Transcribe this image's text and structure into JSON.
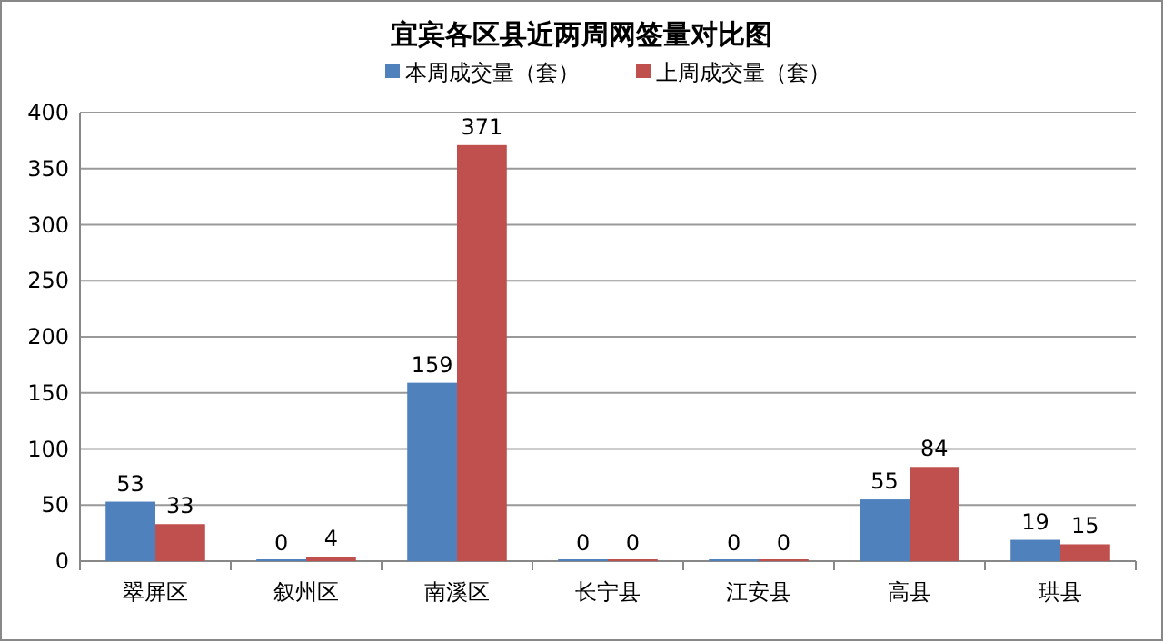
{
  "chart_data": {
    "type": "bar",
    "title": "宜宾各区县近两周网签量对比图",
    "categories": [
      "翠屏区",
      "叙州区",
      "南溪区",
      "长宁县",
      "江安县",
      "高县",
      "珙县"
    ],
    "series": [
      {
        "name": "本周成交量（套）",
        "color": "#4f81bd",
        "values": [
          53,
          0,
          159,
          0,
          0,
          55,
          19
        ]
      },
      {
        "name": "上周成交量（套）",
        "color": "#c0504d",
        "values": [
          33,
          4,
          371,
          0,
          0,
          84,
          15
        ]
      }
    ],
    "ylim": [
      0,
      400
    ],
    "yticks": [
      0,
      50,
      100,
      150,
      200,
      250,
      300,
      350,
      400
    ],
    "grid": "y",
    "legend": "top",
    "data_labels": true
  }
}
